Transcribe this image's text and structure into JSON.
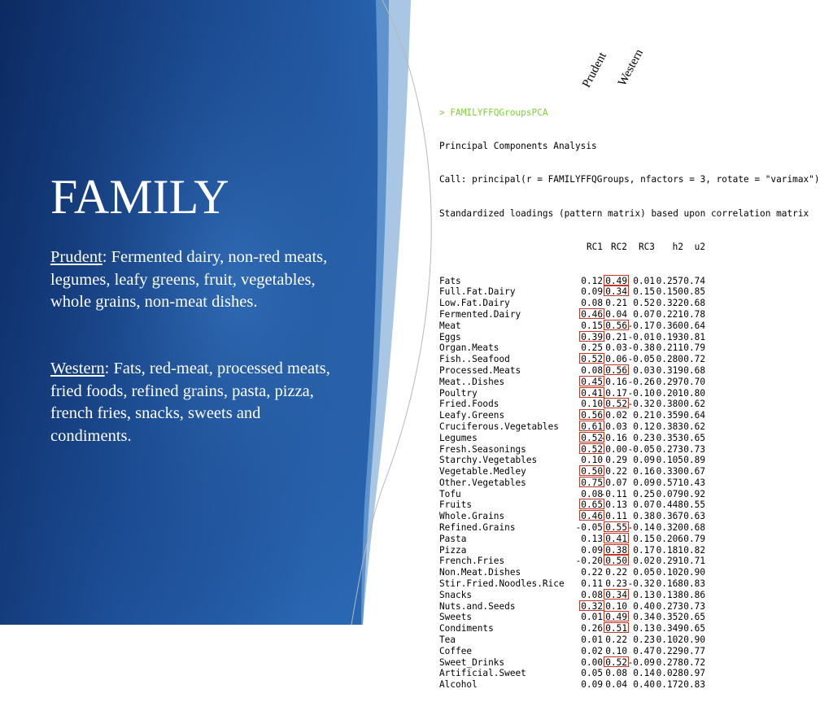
{
  "slide": {
    "title": "FAMILY",
    "prudent_term": "Prudent",
    "prudent_text": ": Fermented dairy, non-red meats, legumes, leafy greens, fruit, vegetables, whole grains, non-meat dishes.",
    "western_term": "Western",
    "western_text": ": Fats, red-meat, processed meats, fried foods,  refined grains, pasta, pizza, french fries, snacks, sweets and condiments."
  },
  "labels": {
    "prudent": "Prudent",
    "western": "Western"
  },
  "colors": {
    "panel_dark": "#0f2f6a",
    "panel_mid": "#1f5aa8",
    "highlight_box": "#c0392b",
    "command": "#7fd23a"
  },
  "r_output": {
    "command": "> FAMILYFFQGroupsPCA",
    "lines": [
      "Principal Components Analysis",
      "Call: principal(r = FAMILYFFQGroups, nfactors = 3, rotate = \"varimax\")",
      "Standardized loadings (pattern matrix) based upon correlation matrix"
    ],
    "columns": [
      "RC1",
      "RC2",
      "RC3",
      "h2",
      "u2"
    ],
    "rows": [
      {
        "name": "Fats",
        "values": [
          "0.12",
          "0.49",
          "0.01",
          "0.257",
          "0.74"
        ],
        "hl": [
          1
        ]
      },
      {
        "name": "Full.Fat.Dairy",
        "values": [
          "0.09",
          "0.34",
          "0.15",
          "0.150",
          "0.85"
        ],
        "hl": [
          1
        ]
      },
      {
        "name": "Low.Fat.Dairy",
        "values": [
          "0.08",
          "0.21",
          "0.52",
          "0.322",
          "0.68"
        ],
        "hl": []
      },
      {
        "name": "Fermented.Dairy",
        "values": [
          "0.46",
          "0.04",
          "0.07",
          "0.221",
          "0.78"
        ],
        "hl": [
          0
        ]
      },
      {
        "name": "Meat",
        "values": [
          "0.15",
          "0.56",
          "-0.17",
          "0.360",
          "0.64"
        ],
        "hl": [
          1
        ]
      },
      {
        "name": "Eggs",
        "values": [
          "0.39",
          "0.21",
          "-0.01",
          "0.193",
          "0.81"
        ],
        "hl": [
          0
        ]
      },
      {
        "name": "Organ.Meats",
        "values": [
          "0.25",
          "0.03",
          "-0.38",
          "0.211",
          "0.79"
        ],
        "hl": []
      },
      {
        "name": "Fish..Seafood",
        "values": [
          "0.52",
          "0.06",
          "-0.05",
          "0.280",
          "0.72"
        ],
        "hl": [
          0
        ]
      },
      {
        "name": "Processed.Meats",
        "values": [
          "0.08",
          "0.56",
          "0.03",
          "0.319",
          "0.68"
        ],
        "hl": [
          1
        ]
      },
      {
        "name": "Meat..Dishes",
        "values": [
          "0.45",
          "0.16",
          "-0.26",
          "0.297",
          "0.70"
        ],
        "hl": [
          0
        ]
      },
      {
        "name": "Poultry",
        "values": [
          "0.41",
          "0.17",
          "-0.10",
          "0.201",
          "0.80"
        ],
        "hl": [
          0
        ]
      },
      {
        "name": "Fried.Foods",
        "values": [
          "0.10",
          "0.52",
          "-0.32",
          "0.380",
          "0.62"
        ],
        "hl": [
          1
        ]
      },
      {
        "name": "Leafy.Greens",
        "values": [
          "0.56",
          "0.02",
          "0.21",
          "0.359",
          "0.64"
        ],
        "hl": [
          0
        ]
      },
      {
        "name": "Cruciferous.Vegetables",
        "values": [
          "0.61",
          "0.03",
          "0.12",
          "0.383",
          "0.62"
        ],
        "hl": [
          0
        ]
      },
      {
        "name": "Legumes",
        "values": [
          "0.52",
          "-0.16",
          "0.23",
          "0.353",
          "0.65"
        ],
        "hl": [
          0
        ]
      },
      {
        "name": "Fresh.Seasonings",
        "values": [
          "0.52",
          "0.00",
          "-0.05",
          "0.273",
          "0.73"
        ],
        "hl": [
          0
        ]
      },
      {
        "name": "Starchy.Vegetables",
        "values": [
          "0.10",
          "0.29",
          "0.09",
          "0.105",
          "0.89"
        ],
        "hl": []
      },
      {
        "name": "Vegetable.Medley",
        "values": [
          "0.50",
          "0.22",
          "0.16",
          "0.330",
          "0.67"
        ],
        "hl": [
          0
        ]
      },
      {
        "name": "Other.Vegetables",
        "values": [
          "0.75",
          "0.07",
          "0.09",
          "0.571",
          "0.43"
        ],
        "hl": [
          0
        ]
      },
      {
        "name": "Tofu",
        "values": [
          "0.08",
          "-0.11",
          "0.25",
          "0.079",
          "0.92"
        ],
        "hl": []
      },
      {
        "name": "Fruits",
        "values": [
          "0.65",
          "0.13",
          "0.07",
          "0.448",
          "0.55"
        ],
        "hl": [
          0
        ]
      },
      {
        "name": "Whole.Grains",
        "values": [
          "0.46",
          "0.11",
          "0.38",
          "0.367",
          "0.63"
        ],
        "hl": [
          0
        ]
      },
      {
        "name": "Refined.Grains",
        "values": [
          "-0.05",
          "0.55",
          "-0.14",
          "0.320",
          "0.68"
        ],
        "hl": [
          1
        ]
      },
      {
        "name": "Pasta",
        "values": [
          "0.13",
          "0.41",
          "0.15",
          "0.206",
          "0.79"
        ],
        "hl": [
          1
        ]
      },
      {
        "name": "Pizza",
        "values": [
          "0.09",
          "0.38",
          "0.17",
          "0.181",
          "0.82"
        ],
        "hl": [
          1
        ]
      },
      {
        "name": "French.Fries",
        "values": [
          "-0.20",
          "0.50",
          "0.02",
          "0.291",
          "0.71"
        ],
        "hl": [
          1
        ]
      },
      {
        "name": "Non.Meat.Dishes",
        "values": [
          "0.22",
          "0.22",
          "0.05",
          "0.102",
          "0.90"
        ],
        "hl": []
      },
      {
        "name": "Stir.Fried.Noodles.Rice",
        "values": [
          "0.11",
          "0.23",
          "-0.32",
          "0.168",
          "0.83"
        ],
        "hl": []
      },
      {
        "name": "Snacks",
        "values": [
          "0.08",
          "0.34",
          "0.13",
          "0.138",
          "0.86"
        ],
        "hl": [
          1
        ]
      },
      {
        "name": "Nuts.and.Seeds",
        "values": [
          "0.32",
          "0.10",
          "0.40",
          "0.273",
          "0.73"
        ],
        "hl": [
          0
        ]
      },
      {
        "name": "Sweets",
        "values": [
          "0.01",
          "0.49",
          "0.34",
          "0.352",
          "0.65"
        ],
        "hl": [
          1
        ]
      },
      {
        "name": "Condiments",
        "values": [
          "0.26",
          "0.51",
          "0.13",
          "0.349",
          "0.65"
        ],
        "hl": [
          1
        ]
      },
      {
        "name": "Tea",
        "values": [
          "0.01",
          "0.22",
          "0.23",
          "0.102",
          "0.90"
        ],
        "hl": []
      },
      {
        "name": "Coffee",
        "values": [
          "0.02",
          "0.10",
          "0.47",
          "0.229",
          "0.77"
        ],
        "hl": []
      },
      {
        "name": "Sweet_Drinks",
        "values": [
          "0.00",
          "0.52",
          "-0.09",
          "0.278",
          "0.72"
        ],
        "hl": [
          1
        ]
      },
      {
        "name": "Artificial.Sweet",
        "values": [
          "0.05",
          "0.08",
          "0.14",
          "0.028",
          "0.97"
        ],
        "hl": []
      },
      {
        "name": "Alcohol",
        "values": [
          "0.09",
          "0.04",
          "0.40",
          "0.172",
          "0.83"
        ],
        "hl": []
      }
    ]
  }
}
